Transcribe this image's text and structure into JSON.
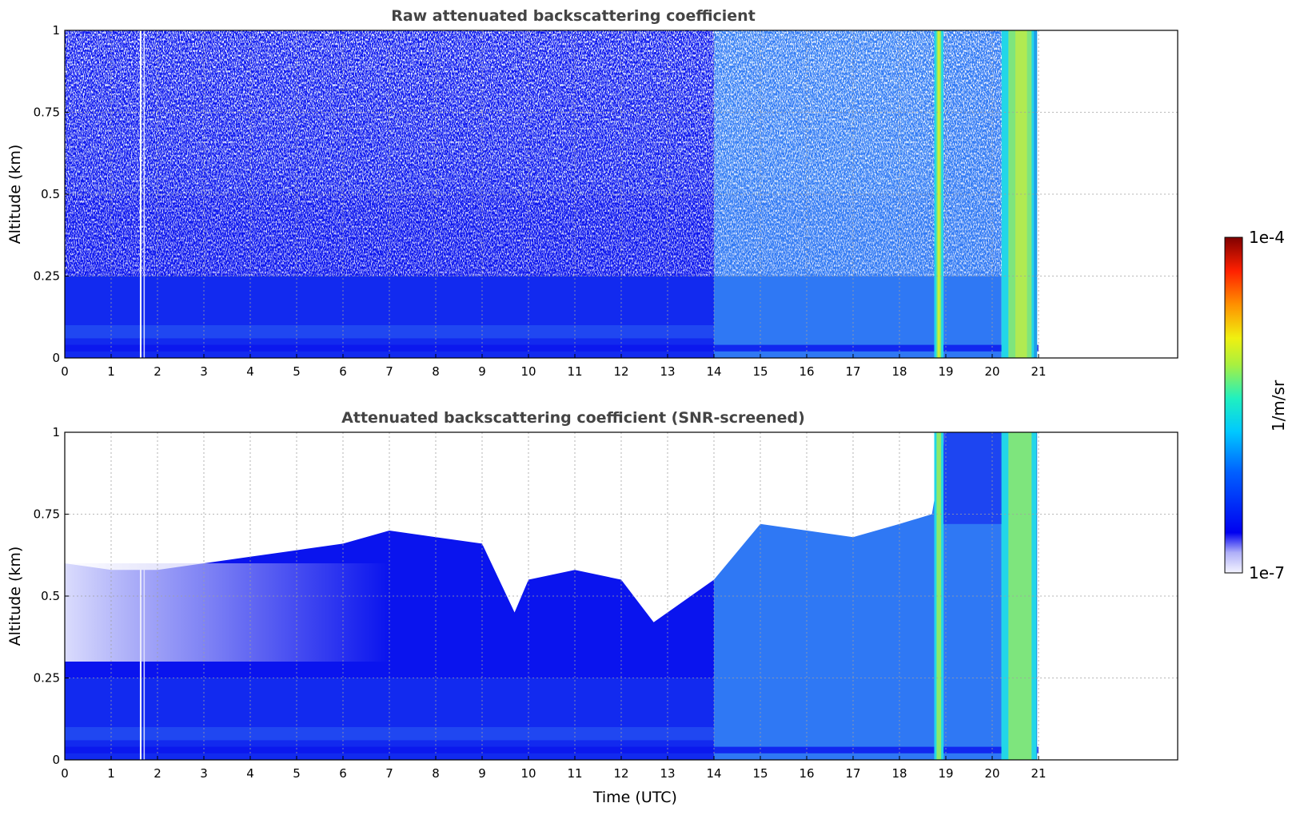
{
  "chart_data": [
    {
      "type": "heatmap",
      "title": "Raw attenuated backscattering coefficient",
      "xlabel": "",
      "ylabel": "Altitude (km)",
      "xlim": [
        0,
        24
      ],
      "ylim": [
        0,
        1
      ],
      "xticks": [
        "0",
        "1",
        "2",
        "3",
        "4",
        "5",
        "6",
        "7",
        "8",
        "9",
        "10",
        "11",
        "12",
        "13",
        "14",
        "15",
        "16",
        "17",
        "18",
        "19",
        "20",
        "21"
      ],
      "yticks": [
        "0",
        "0.25",
        "0.5",
        "0.75",
        "1"
      ],
      "grid": true,
      "data_extent_hours": [
        0,
        21
      ],
      "features": [
        {
          "x_range": [
            0,
            14
          ],
          "y_range": [
            0,
            0.25
          ],
          "level": "low-moderate (blue)"
        },
        {
          "x_range": [
            0,
            14
          ],
          "y_range": [
            0.25,
            1
          ],
          "level": "noisy low (blue/white)"
        },
        {
          "x_range": [
            14,
            18.75
          ],
          "y_range": [
            0,
            1
          ],
          "level": "moderate (light blue)"
        },
        {
          "x_range": [
            18.75,
            18.95
          ],
          "y_range": [
            0,
            1
          ],
          "level": "high (green/yellow)"
        },
        {
          "x_range": [
            20.2,
            20.95
          ],
          "y_range": [
            0,
            1
          ],
          "level": "high (cyan/green/yellow)"
        }
      ]
    },
    {
      "type": "heatmap",
      "title": "Attenuated backscattering coefficient (SNR-screened)",
      "xlabel": "Time (UTC)",
      "ylabel": "Altitude (km)",
      "xlim": [
        0,
        24
      ],
      "ylim": [
        0,
        1
      ],
      "xticks": [
        "0",
        "1",
        "2",
        "3",
        "4",
        "5",
        "6",
        "7",
        "8",
        "9",
        "10",
        "11",
        "12",
        "13",
        "14",
        "15",
        "16",
        "17",
        "18",
        "19",
        "20",
        "21"
      ],
      "yticks": [
        "0",
        "0.25",
        "0.5",
        "0.75",
        "1"
      ],
      "grid": true,
      "data_extent_hours": [
        0,
        21
      ],
      "top_boundary_km": [
        {
          "x": 0,
          "y": 0.6
        },
        {
          "x": 1,
          "y": 0.58
        },
        {
          "x": 2,
          "y": 0.58
        },
        {
          "x": 3,
          "y": 0.6
        },
        {
          "x": 4,
          "y": 0.62
        },
        {
          "x": 5,
          "y": 0.64
        },
        {
          "x": 6,
          "y": 0.66
        },
        {
          "x": 7,
          "y": 0.7
        },
        {
          "x": 8,
          "y": 0.68
        },
        {
          "x": 9,
          "y": 0.66
        },
        {
          "x": 9.7,
          "y": 0.45
        },
        {
          "x": 10,
          "y": 0.55
        },
        {
          "x": 11,
          "y": 0.58
        },
        {
          "x": 12,
          "y": 0.55
        },
        {
          "x": 12.7,
          "y": 0.42
        },
        {
          "x": 13.5,
          "y": 0.5
        },
        {
          "x": 14,
          "y": 0.55
        },
        {
          "x": 15,
          "y": 0.72
        },
        {
          "x": 16,
          "y": 0.7
        },
        {
          "x": 17,
          "y": 0.68
        },
        {
          "x": 18,
          "y": 0.72
        },
        {
          "x": 18.7,
          "y": 0.75
        },
        {
          "x": 19,
          "y": 1
        },
        {
          "x": 21,
          "y": 1
        }
      ]
    }
  ],
  "colorbar": {
    "min_label": "1e-7",
    "max_label": "1e-4",
    "label": "1/m/sr",
    "colormap": "jet",
    "scale": "log"
  },
  "colors": {
    "deep_blue": "#0a14ee",
    "mid_blue": "#1a3cf0",
    "light_blue": "#2f78f4",
    "cyan": "#22d6e8",
    "green": "#8ee86a",
    "yellow": "#f0f020",
    "pale_lavender": "#c8c8f8"
  }
}
